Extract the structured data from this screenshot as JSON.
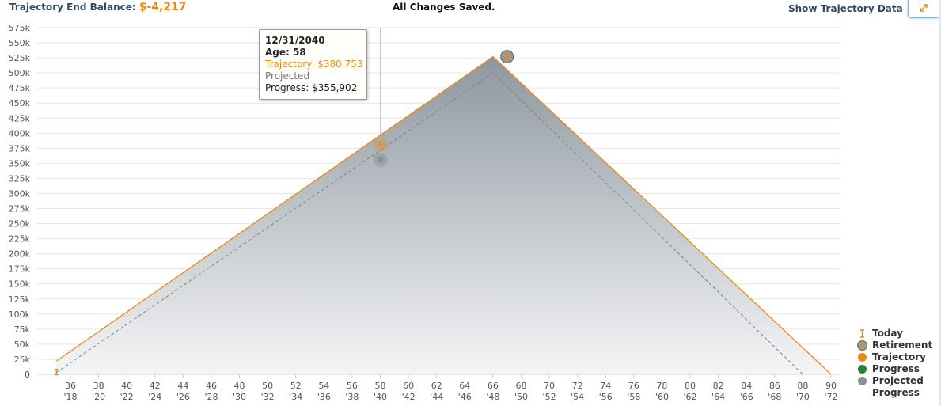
{
  "header": {
    "end_balance_label": "Trajectory End Balance:",
    "end_balance_value": "$-4,217",
    "save_status": "All Changes Saved.",
    "show_data_label": "Show Trajectory Data"
  },
  "tooltip": {
    "date": "12/31/2040",
    "age_line": "Age: 58",
    "trajectory_line": "Trajectory: $380,753",
    "projected_line": "Projected",
    "progress_line": "Progress: $355,902"
  },
  "legend": {
    "today": "Today",
    "retirement": "Retirement",
    "trajectory": "Trajectory",
    "progress": "Progress",
    "projected_progress": "Projected Progress"
  },
  "colors": {
    "trajectory": "#e98b1b",
    "projected": "#8a8f94",
    "progress": "#2e7d32",
    "accent_text": "#34495e"
  },
  "chart_data": {
    "type": "area",
    "x_ages": [
      35,
      36,
      38,
      40,
      42,
      44,
      46,
      48,
      50,
      52,
      54,
      56,
      58,
      60,
      62,
      64,
      66,
      68,
      70,
      72,
      74,
      76,
      78,
      80,
      82,
      84,
      86,
      88,
      90
    ],
    "age_tick_labels": [
      "36",
      "38",
      "40",
      "42",
      "44",
      "46",
      "48",
      "50",
      "52",
      "54",
      "56",
      "58",
      "60",
      "62",
      "64",
      "66",
      "68",
      "70",
      "72",
      "74",
      "76",
      "78",
      "80",
      "82",
      "84",
      "86",
      "88",
      "90"
    ],
    "year_tick_labels": [
      "'18",
      "'20",
      "'22",
      "'24",
      "'26",
      "'28",
      "'30",
      "'32",
      "'34",
      "'36",
      "'38",
      "'40",
      "'42",
      "'44",
      "'46",
      "'48",
      "'50",
      "'52",
      "'54",
      "'56",
      "'58",
      "'60",
      "'62",
      "'64",
      "'66",
      "'68",
      "'70",
      "'72"
    ],
    "y_tick_labels": [
      "0",
      "25k",
      "50k",
      "75k",
      "100k",
      "125k",
      "150k",
      "175k",
      "200k",
      "225k",
      "250k",
      "275k",
      "300k",
      "325k",
      "350k",
      "375k",
      "400k",
      "425k",
      "450k",
      "475k",
      "500k",
      "525k",
      "550k",
      "575k"
    ],
    "ylim": [
      0,
      575000
    ],
    "xlim": [
      34,
      90
    ],
    "series": [
      {
        "name": "Trajectory",
        "points": [
          [
            35,
            22000
          ],
          [
            66,
            527000
          ],
          [
            90,
            -4217
          ]
        ]
      },
      {
        "name": "Projected Progress",
        "points": [
          [
            35,
            3000
          ],
          [
            66,
            500000
          ],
          [
            88,
            0
          ]
        ]
      }
    ],
    "today_marker": {
      "age": 35,
      "value": 3000
    },
    "retirement_marker": {
      "age": 67,
      "value": 527000
    },
    "hover_age": 58,
    "hover_points": {
      "trajectory": 380753,
      "projected": 355902
    }
  }
}
